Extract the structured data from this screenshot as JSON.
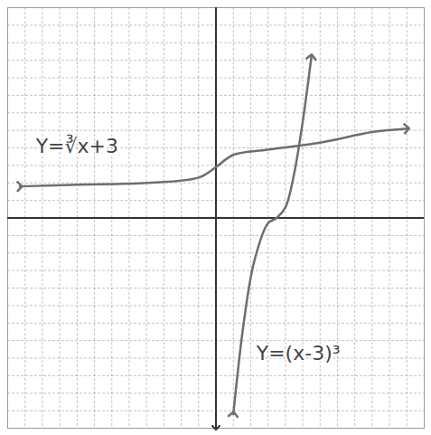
{
  "chart_data": {
    "type": "line",
    "xlim": [
      -12,
      12
    ],
    "ylim": [
      -12,
      12
    ],
    "xticks": [
      -12,
      -11,
      -10,
      -9,
      -8,
      -7,
      -6,
      -5,
      -4,
      -3,
      -2,
      -1,
      0,
      1,
      2,
      3,
      4,
      5,
      6,
      7,
      8,
      9,
      10,
      11,
      12
    ],
    "yticks": [
      -12,
      -11,
      -10,
      -9,
      -8,
      -7,
      -6,
      -5,
      -4,
      -3,
      -2,
      -1,
      0,
      1,
      2,
      3,
      4,
      5,
      6,
      7,
      8,
      9,
      10,
      11,
      12
    ],
    "grid": true,
    "tick_labels": false,
    "marker": "arrow",
    "series": [
      {
        "name": "Y=∛x+3",
        "color": "#6e6e6e",
        "x": [
          -11.3,
          -8,
          -4,
          -1,
          0,
          1,
          3,
          6,
          9,
          11
        ],
        "values": [
          1.8,
          1.9,
          2.0,
          2.3,
          2.9,
          3.6,
          3.9,
          4.3,
          4.9,
          5.1
        ]
      },
      {
        "name": "Y=(x-3)³",
        "color": "#6e6e6e",
        "x": [
          1,
          1.6,
          2.2,
          3,
          3.5,
          4,
          4.5,
          5,
          5.5
        ],
        "values": [
          -11.2,
          -6,
          -2.5,
          -0.3,
          0,
          0.6,
          2.5,
          5.5,
          9.2
        ]
      }
    ]
  }
}
